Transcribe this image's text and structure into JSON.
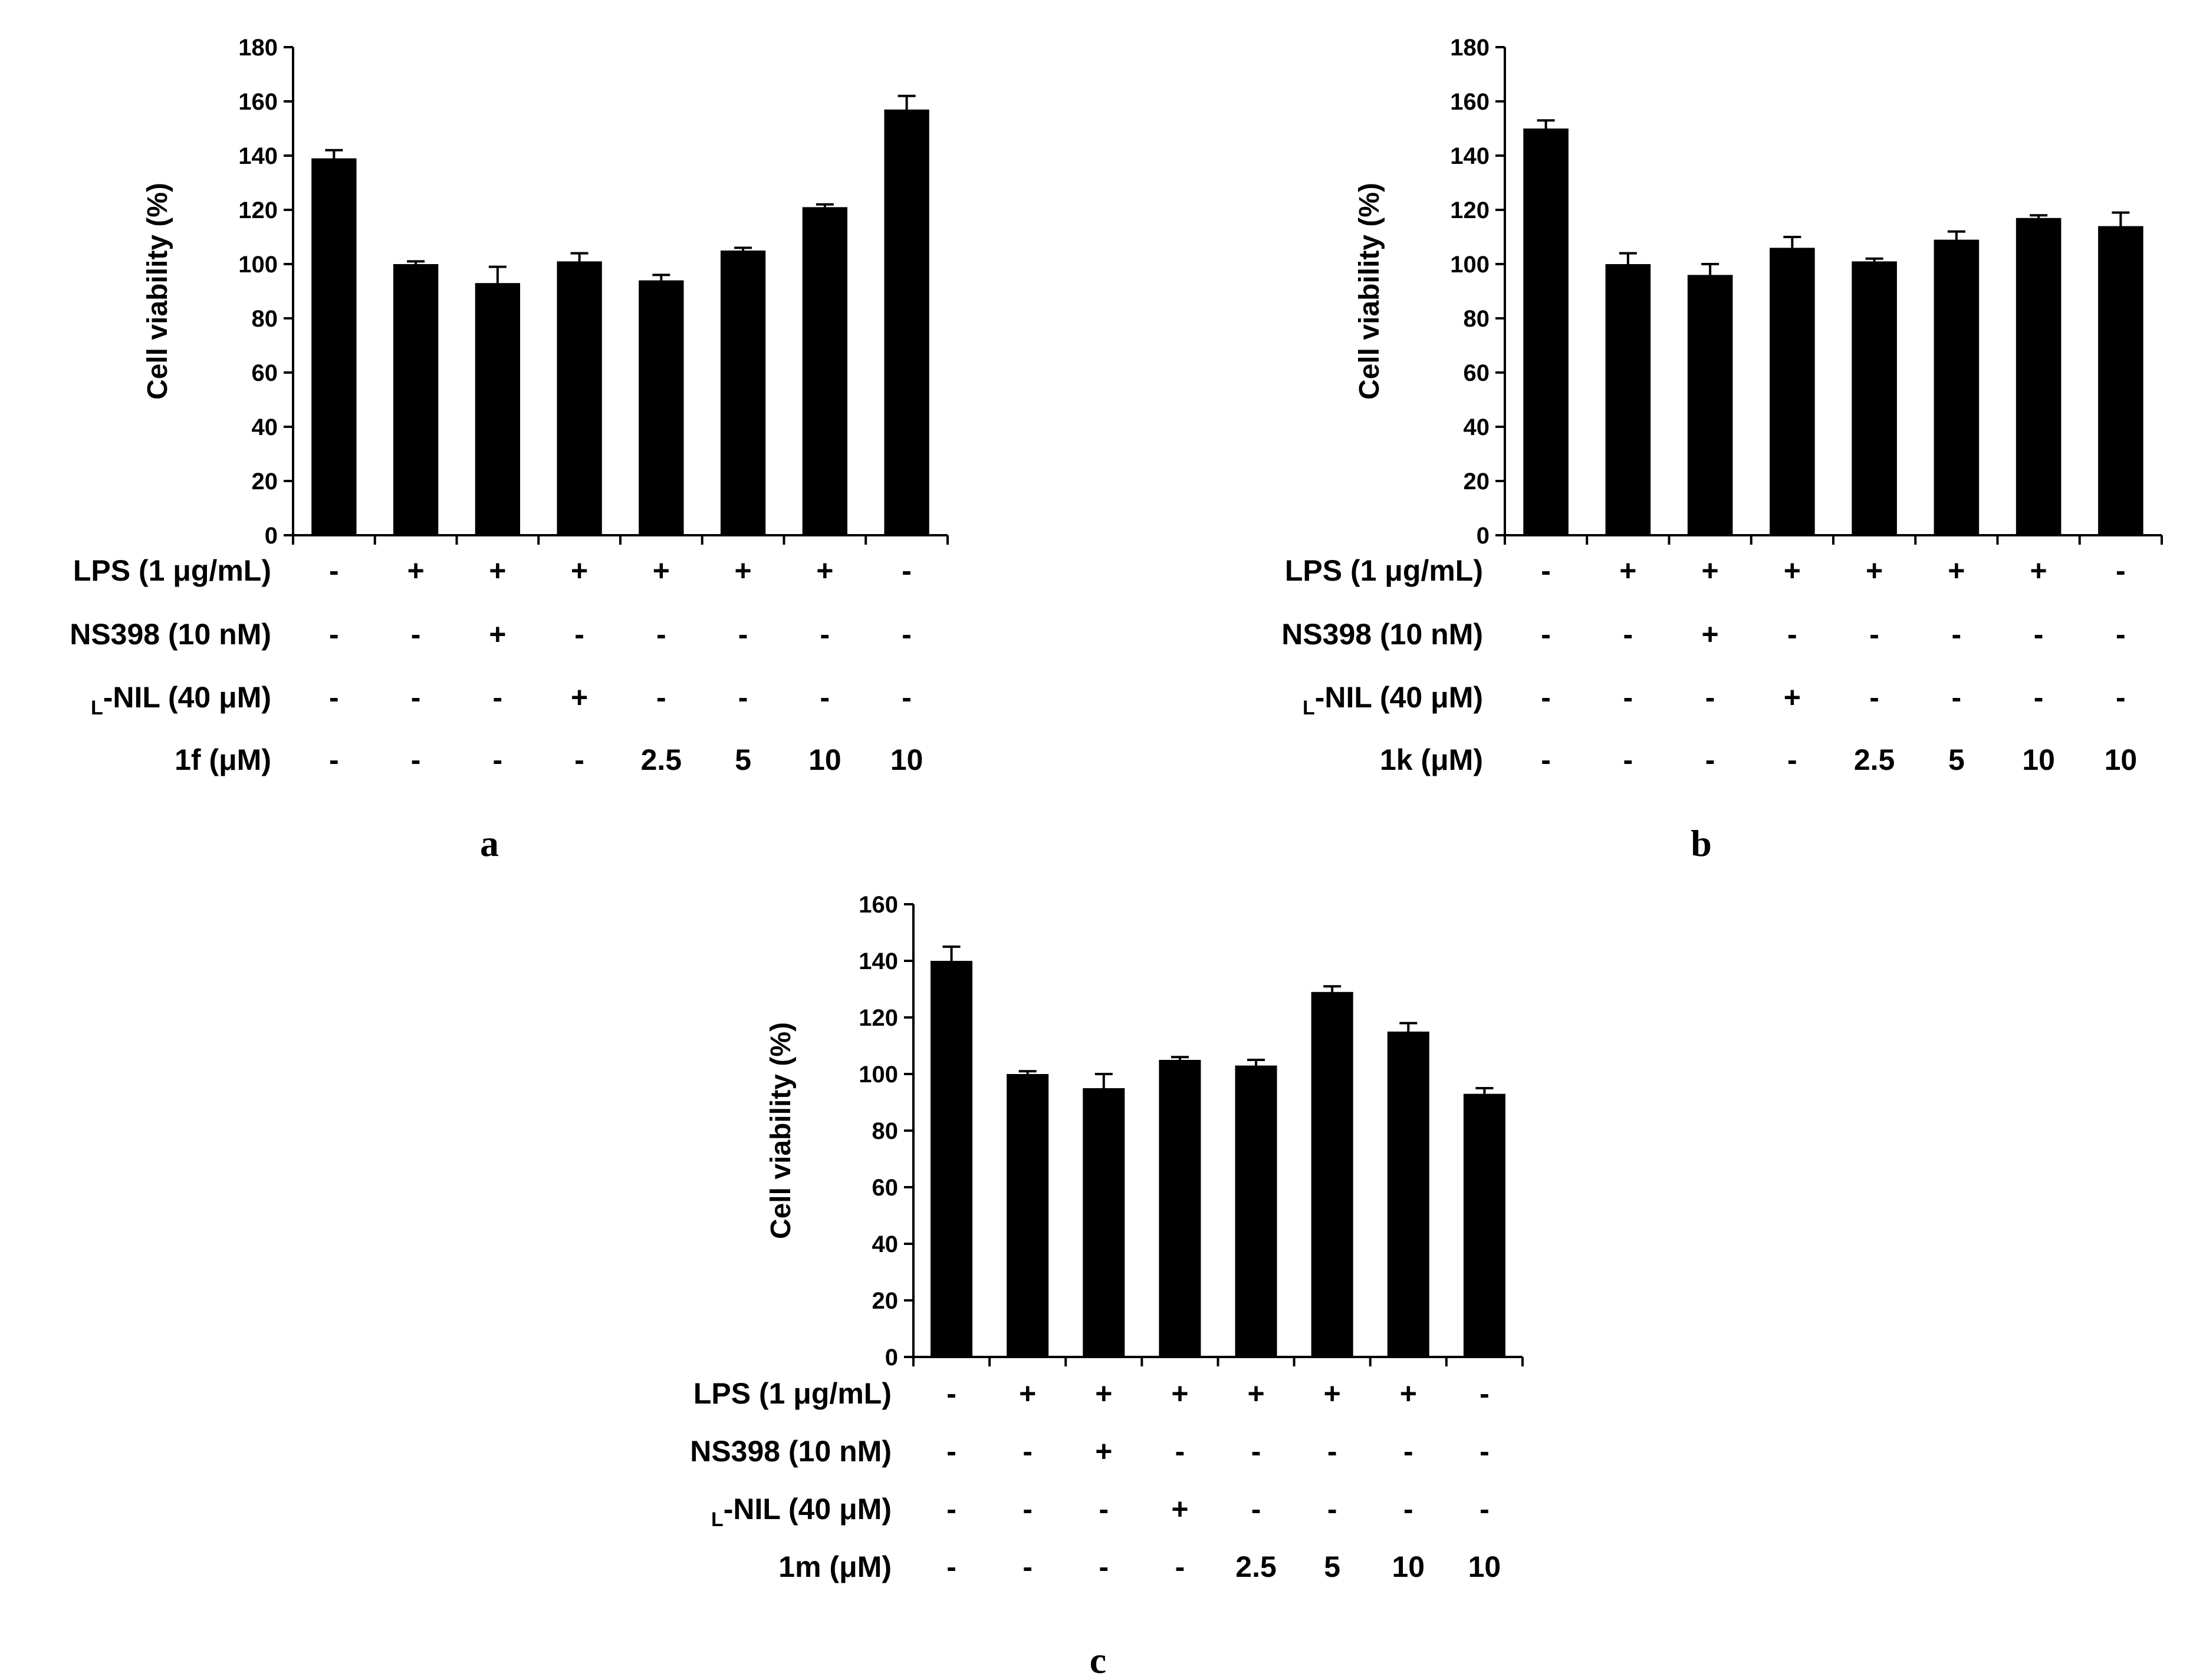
{
  "chart_data": [
    {
      "type": "bar",
      "panel_label": "a",
      "ylabel": "Cell viability (%)",
      "ylim": [
        0,
        180
      ],
      "yticks": [
        0,
        20,
        40,
        60,
        80,
        100,
        120,
        140,
        160,
        180
      ],
      "values": [
        139,
        100,
        93,
        101,
        94,
        105,
        121,
        157
      ],
      "errors": [
        3,
        1,
        6,
        3,
        2,
        1,
        1,
        5
      ],
      "conditions": [
        {
          "label": "LPS (1 μg/mL)",
          "values": [
            "-",
            "+",
            "+",
            "+",
            "+",
            "+",
            "+",
            "-"
          ]
        },
        {
          "label": "NS398 (10 nM)",
          "values": [
            "-",
            "-",
            "+",
            "-",
            "-",
            "-",
            "-",
            "-"
          ]
        },
        {
          "label_prefix": "L",
          "label": "-NIL (40 μM)",
          "values": [
            "-",
            "-",
            "-",
            "+",
            "-",
            "-",
            "-",
            "-"
          ]
        },
        {
          "label": "1f (μM)",
          "values": [
            "-",
            "-",
            "-",
            "-",
            "2.5",
            "5",
            "10",
            "10"
          ]
        }
      ]
    },
    {
      "type": "bar",
      "panel_label": "b",
      "ylabel": "Cell viability (%)",
      "ylim": [
        0,
        180
      ],
      "yticks": [
        0,
        20,
        40,
        60,
        80,
        100,
        120,
        140,
        160,
        180
      ],
      "values": [
        150,
        100,
        96,
        106,
        101,
        109,
        117,
        114
      ],
      "errors": [
        3,
        4,
        4,
        4,
        1,
        3,
        1,
        5
      ],
      "conditions": [
        {
          "label": "LPS (1 μg/mL)",
          "values": [
            "-",
            "+",
            "+",
            "+",
            "+",
            "+",
            "+",
            "-"
          ]
        },
        {
          "label": "NS398 (10 nM)",
          "values": [
            "-",
            "-",
            "+",
            "-",
            "-",
            "-",
            "-",
            "-"
          ]
        },
        {
          "label_prefix": "L",
          "label": "-NIL (40 μM)",
          "values": [
            "-",
            "-",
            "-",
            "+",
            "-",
            "-",
            "-",
            "-"
          ]
        },
        {
          "label": "1k (μM)",
          "values": [
            "-",
            "-",
            "-",
            "-",
            "2.5",
            "5",
            "10",
            "10"
          ]
        }
      ]
    },
    {
      "type": "bar",
      "panel_label": "c",
      "ylabel": "Cell viability (%)",
      "ylim": [
        0,
        160
      ],
      "yticks": [
        0,
        20,
        40,
        60,
        80,
        100,
        120,
        140,
        160
      ],
      "values": [
        140,
        100,
        95,
        105,
        103,
        129,
        115,
        93
      ],
      "errors": [
        5,
        1,
        5,
        1,
        2,
        2,
        3,
        2
      ],
      "conditions": [
        {
          "label": "LPS (1 μg/mL)",
          "values": [
            "-",
            "+",
            "+",
            "+",
            "+",
            "+",
            "+",
            "-"
          ]
        },
        {
          "label": "NS398 (10 nM)",
          "values": [
            "-",
            "-",
            "+",
            "-",
            "-",
            "-",
            "-",
            "-"
          ]
        },
        {
          "label_prefix": "L",
          "label": "-NIL (40 μM)",
          "values": [
            "-",
            "-",
            "-",
            "+",
            "-",
            "-",
            "-",
            "-"
          ]
        },
        {
          "label": "1m (μM)",
          "values": [
            "-",
            "-",
            "-",
            "-",
            "2.5",
            "5",
            "10",
            "10"
          ]
        }
      ]
    }
  ]
}
